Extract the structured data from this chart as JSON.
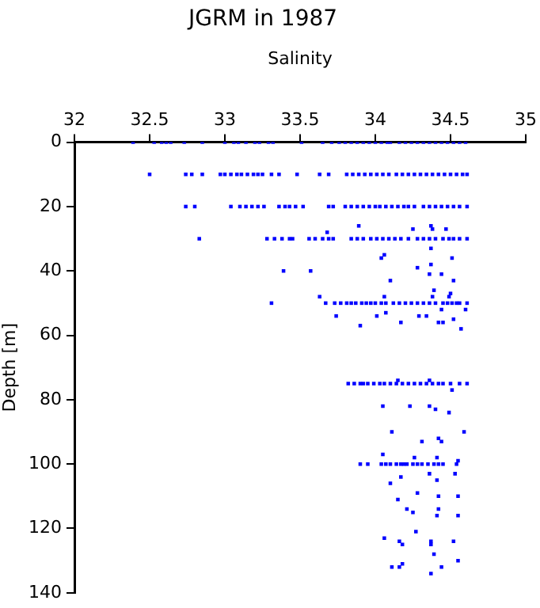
{
  "chart_data": {
    "type": "scatter",
    "title": "JGRM in 1987",
    "xlabel": "Salinity",
    "ylabel": "Depth [m]",
    "xlim": [
      32,
      35
    ],
    "xticks": [
      32,
      32.5,
      33,
      33.5,
      34,
      34.5,
      35
    ],
    "ylim": [
      140,
      0
    ],
    "yticks": [
      0,
      20,
      40,
      60,
      80,
      100,
      120,
      140
    ],
    "marker": "square",
    "series": [
      {
        "color": "#0000ff",
        "x": [
          32.39,
          32.53,
          32.58,
          32.61,
          32.64,
          32.73,
          32.85,
          33.0,
          33.06,
          33.09,
          33.14,
          33.2,
          33.23,
          33.29,
          33.32,
          33.51,
          33.65,
          33.71,
          33.76,
          33.8,
          33.84,
          33.88,
          33.92,
          33.96,
          34.0,
          34.04,
          34.08,
          34.1,
          34.16,
          34.2,
          34.24,
          34.28,
          34.32,
          34.36,
          34.4,
          34.44,
          34.48,
          34.52,
          34.56,
          34.6
        ],
        "values": [
          0,
          0,
          0,
          0,
          0,
          0,
          0,
          0,
          0,
          0,
          0,
          0,
          0,
          0,
          0,
          0,
          0,
          0,
          0,
          0,
          0,
          0,
          0,
          0,
          0,
          0,
          0,
          0,
          0,
          0,
          0,
          0,
          0,
          0,
          0,
          0,
          0,
          0,
          0,
          0
        ]
      },
      {
        "color": "#0000ff",
        "x": [
          32.5,
          32.74,
          32.78,
          32.85,
          32.97,
          33.0,
          33.04,
          33.08,
          33.11,
          33.15,
          33.19,
          33.22,
          33.25,
          33.31,
          33.36,
          33.48,
          33.63,
          33.69,
          33.81,
          33.85,
          33.89,
          33.93,
          33.97,
          34.01,
          34.05,
          34.09,
          34.14,
          34.18,
          34.22,
          34.26,
          34.3,
          34.34,
          34.38,
          34.42,
          34.46,
          34.5,
          34.54,
          34.58,
          34.61
        ],
        "values": [
          10,
          10,
          10,
          10,
          10,
          10,
          10,
          10,
          10,
          10,
          10,
          10,
          10,
          10,
          10,
          10,
          10,
          10,
          10,
          10,
          10,
          10,
          10,
          10,
          10,
          10,
          10,
          10,
          10,
          10,
          10,
          10,
          10,
          10,
          10,
          10,
          10,
          10,
          10
        ]
      },
      {
        "color": "#0000ff",
        "x": [
          32.74,
          32.8,
          33.04,
          33.1,
          33.14,
          33.18,
          33.22,
          33.26,
          33.36,
          33.4,
          33.43,
          33.47,
          33.52,
          33.69,
          33.72,
          33.8,
          33.84,
          33.88,
          33.92,
          33.96,
          34.0,
          34.03,
          34.07,
          34.11,
          34.15,
          34.19,
          34.22,
          34.26,
          34.32,
          34.36,
          34.4,
          34.44,
          34.48,
          34.52,
          34.56,
          34.61
        ],
        "values": [
          20,
          20,
          20,
          20,
          20,
          20,
          20,
          20,
          20,
          20,
          20,
          20,
          20,
          20,
          20,
          20,
          20,
          20,
          20,
          20,
          20,
          20,
          20,
          20,
          20,
          20,
          20,
          20,
          20,
          20,
          20,
          20,
          20,
          20,
          20,
          20
        ]
      },
      {
        "color": "#0000ff",
        "x": [
          32.83,
          33.28,
          33.33,
          33.38,
          33.43,
          33.45,
          33.56,
          33.6,
          33.65,
          33.69,
          33.72,
          33.84,
          33.88,
          33.92,
          33.97,
          34.01,
          34.05,
          34.09,
          34.13,
          34.17,
          34.22,
          34.28,
          34.32,
          34.36,
          34.4,
          34.45,
          34.49,
          34.52,
          34.56,
          34.61
        ],
        "values": [
          30,
          30,
          30,
          30,
          30,
          30,
          30,
          30,
          30,
          30,
          30,
          30,
          30,
          30,
          30,
          30,
          30,
          30,
          30,
          30,
          30,
          30,
          30,
          30,
          30,
          30,
          30,
          30,
          30,
          30
        ]
      },
      {
        "color": "#0000ff",
        "x": [
          33.89,
          33.68,
          34.25,
          34.37,
          34.38,
          34.47,
          34.37,
          34.06,
          34.04,
          34.51,
          34.37,
          34.28,
          33.39,
          33.57,
          34.36,
          34.44,
          34.1,
          34.52,
          33.63,
          34.06,
          34.39,
          34.5,
          34.49,
          34.38
        ],
        "values": [
          26,
          28,
          27,
          26,
          27,
          27,
          33,
          35,
          36,
          36,
          38,
          39,
          40,
          40,
          41,
          41,
          43,
          43,
          48,
          48,
          46,
          47,
          48,
          48
        ]
      },
      {
        "color": "#0000ff",
        "x": [
          33.31,
          33.67,
          33.73,
          33.77,
          33.81,
          33.84,
          33.87,
          33.91,
          33.94,
          33.97,
          34.0,
          34.04,
          34.07,
          34.12,
          34.16,
          34.2,
          34.24,
          34.28,
          34.32,
          34.36,
          34.4,
          34.45,
          34.48,
          34.51,
          34.54,
          34.56,
          34.61
        ],
        "values": [
          50,
          50,
          50,
          50,
          50,
          50,
          50,
          50,
          50,
          50,
          50,
          50,
          50,
          50,
          50,
          50,
          50,
          50,
          50,
          50,
          50,
          50,
          50,
          50,
          50,
          50,
          50
        ]
      },
      {
        "color": "#0000ff",
        "x": [
          33.74,
          34.01,
          34.29,
          34.34,
          34.07,
          34.44,
          34.6,
          34.17,
          34.42,
          34.45,
          34.52,
          33.9,
          34.57
        ],
        "values": [
          54,
          54,
          54,
          54,
          53,
          52,
          52,
          56,
          56,
          56,
          55,
          57,
          58
        ]
      },
      {
        "color": "#0000ff",
        "x": [
          33.82,
          33.86,
          33.9,
          33.92,
          33.95,
          33.99,
          34.03,
          34.06,
          34.1,
          34.14,
          34.18,
          34.22,
          34.26,
          34.3,
          34.34,
          34.38,
          34.42,
          34.45,
          34.5,
          34.56,
          34.61,
          34.15,
          34.36,
          34.51
        ],
        "values": [
          75,
          75,
          75,
          75,
          75,
          75,
          75,
          75,
          75,
          75,
          75,
          75,
          75,
          75,
          75,
          75,
          75,
          75,
          75,
          75,
          75,
          74,
          74,
          77
        ]
      },
      {
        "color": "#0000ff",
        "x": [
          34.05,
          34.23,
          34.36,
          34.4,
          34.49,
          34.11,
          34.31,
          34.42,
          34.44,
          34.59,
          34.05,
          34.26,
          34.41
        ],
        "values": [
          82,
          82,
          82,
          83,
          84,
          90,
          93,
          92,
          93,
          90,
          97,
          98,
          98
        ]
      },
      {
        "color": "#0000ff",
        "x": [
          33.9,
          33.95,
          34.04,
          34.07,
          34.1,
          34.14,
          34.17,
          34.19,
          34.21,
          34.25,
          34.28,
          34.31,
          34.35,
          34.39,
          34.42,
          34.45,
          34.54,
          34.55
        ],
        "values": [
          100,
          100,
          100,
          100,
          100,
          100,
          100,
          100,
          100,
          100,
          100,
          100,
          100,
          100,
          100,
          100,
          100,
          99
        ]
      },
      {
        "color": "#0000ff",
        "x": [
          34.36,
          34.17,
          34.53,
          34.41,
          34.1,
          34.28,
          34.42,
          34.55,
          34.15,
          34.21,
          34.42,
          34.25,
          34.41,
          34.55,
          34.27,
          34.06,
          34.16,
          34.18,
          34.37,
          34.37,
          34.52,
          34.39,
          34.55,
          34.11,
          34.16,
          34.18,
          34.44,
          34.37
        ],
        "values": [
          103,
          104,
          103,
          105,
          106,
          109,
          110,
          110,
          111,
          114,
          114,
          115,
          116,
          116,
          121,
          123,
          124,
          125,
          124,
          125,
          124,
          128,
          130,
          132,
          132,
          131,
          132,
          134
        ]
      }
    ]
  }
}
